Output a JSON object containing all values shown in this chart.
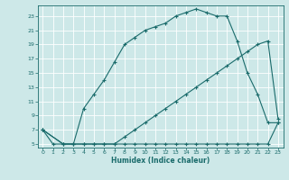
{
  "xlabel": "Humidex (Indice chaleur)",
  "bg_color": "#cde8e8",
  "grid_color": "#b8d8d8",
  "line_color": "#1a6b6b",
  "xlim": [
    -0.5,
    23.5
  ],
  "ylim": [
    4.5,
    24.5
  ],
  "xticks": [
    0,
    1,
    2,
    3,
    4,
    5,
    6,
    7,
    8,
    9,
    10,
    11,
    12,
    13,
    14,
    15,
    16,
    17,
    18,
    19,
    20,
    21,
    22,
    23
  ],
  "yticks": [
    5,
    7,
    9,
    11,
    13,
    15,
    17,
    19,
    21,
    23
  ],
  "curve1_x": [
    0,
    1,
    2,
    3,
    4,
    5,
    6,
    7,
    8,
    9,
    10,
    11,
    12,
    13,
    14,
    15,
    16,
    17,
    18,
    19,
    20,
    21,
    22,
    23
  ],
  "curve1_y": [
    7,
    5,
    5,
    5,
    5,
    5,
    5,
    5,
    5,
    5,
    5,
    5,
    5,
    5,
    5,
    5,
    5,
    5,
    5,
    5,
    5,
    5,
    5,
    8
  ],
  "curve2_x": [
    0,
    2,
    3,
    4,
    5,
    6,
    7,
    8,
    9,
    10,
    11,
    12,
    13,
    14,
    15,
    16,
    17,
    18,
    19,
    20,
    21,
    22,
    23
  ],
  "curve2_y": [
    7,
    5,
    5,
    5,
    5,
    5,
    5,
    6,
    7,
    8,
    9,
    10,
    11,
    12,
    13,
    14,
    15,
    16,
    17,
    18,
    19,
    19.5,
    8.5
  ],
  "curve3_x": [
    0,
    2,
    3,
    4,
    5,
    6,
    7,
    8,
    9,
    10,
    11,
    12,
    13,
    14,
    15,
    16,
    17,
    18,
    19,
    20,
    21,
    22,
    23
  ],
  "curve3_y": [
    7,
    5,
    5,
    10,
    12,
    14,
    16.5,
    19,
    20,
    21,
    21.5,
    22,
    23,
    23.5,
    24,
    23.5,
    23,
    23,
    19.5,
    15,
    12,
    8,
    8
  ]
}
